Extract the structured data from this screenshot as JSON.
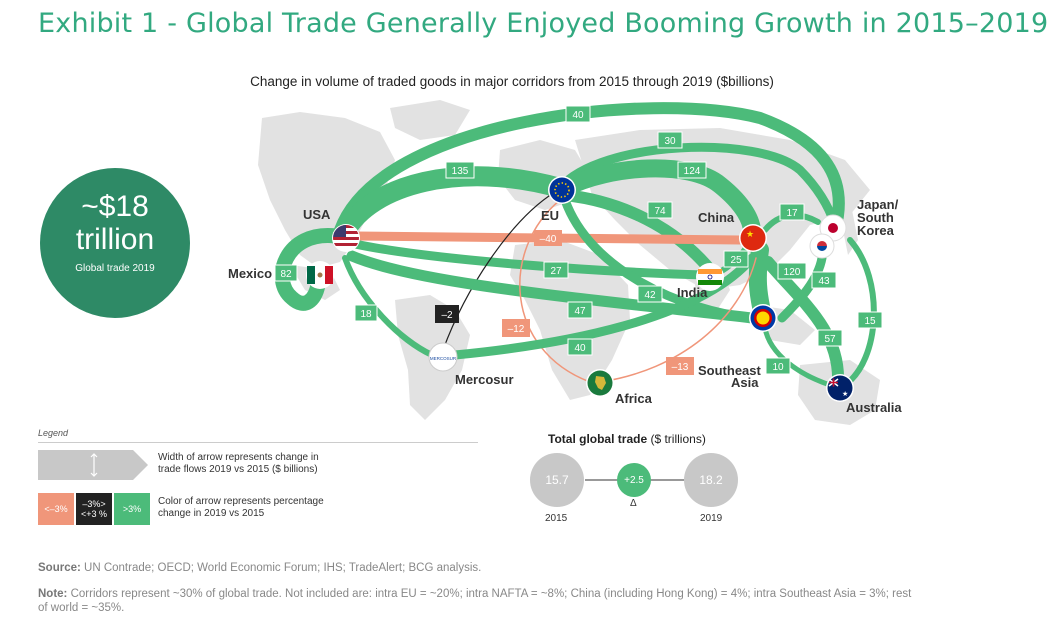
{
  "title": "Exhibit 1 - Global Trade Generally Enjoyed Booming Growth in 2015–2019",
  "subtitle": "Change in volume of traded goods in major corridors from 2015 through 2019 ($billions)",
  "global_trade": {
    "value": "~$18 trillion",
    "value_line1": "~$18",
    "value_line2": "trillion",
    "caption": "Global trade 2019"
  },
  "regions": {
    "usa": "USA",
    "mexico": "Mexico",
    "eu": "EU",
    "china": "China",
    "japan_line1": "Japan/",
    "japan_line2": "South",
    "japan_line3": "Korea",
    "india": "India",
    "mercosur": "Mercosur",
    "africa": "Africa",
    "sea_line1": "Southeast",
    "sea_line2": "Asia",
    "australia": "Australia"
  },
  "corridors": [
    {
      "value": "40",
      "color": "green"
    },
    {
      "value": "30",
      "color": "green"
    },
    {
      "value": "135",
      "color": "green"
    },
    {
      "value": "124",
      "color": "green"
    },
    {
      "value": "74",
      "color": "green"
    },
    {
      "value": "17",
      "color": "green"
    },
    {
      "value": "–40",
      "color": "salmon"
    },
    {
      "value": "25",
      "color": "green"
    },
    {
      "value": "82",
      "color": "green"
    },
    {
      "value": "27",
      "color": "green"
    },
    {
      "value": "120",
      "color": "green"
    },
    {
      "value": "43",
      "color": "green"
    },
    {
      "value": "42",
      "color": "green"
    },
    {
      "value": "–2",
      "color": "black"
    },
    {
      "value": "18",
      "color": "green"
    },
    {
      "value": "47",
      "color": "green"
    },
    {
      "value": "–12",
      "color": "salmon"
    },
    {
      "value": "15",
      "color": "green"
    },
    {
      "value": "57",
      "color": "green"
    },
    {
      "value": "40",
      "color": "green"
    },
    {
      "value": "–13",
      "color": "salmon"
    },
    {
      "value": "10",
      "color": "green"
    }
  ],
  "legend": {
    "title": "Legend",
    "width_text_line1": "Width of arrow represents change in",
    "width_text_line2": "trade flows 2019 vs 2015 ($ billions)",
    "color_text_line1": "Color of arrow represents percentage",
    "color_text_line2": "change in 2019 vs 2015",
    "swatch_low": "<–3%",
    "swatch_mid_line1": "–3%>",
    "swatch_mid_line2": "<+3 %",
    "swatch_high": ">3%"
  },
  "total": {
    "title": "Total global trade",
    "unit": "($ trillions)",
    "v2015": "15.7",
    "delta": "+2.5",
    "v2019": "18.2",
    "y2015": "2015",
    "delta_label": "Δ",
    "y2019": "2019"
  },
  "mercosur_logo_text": "MERCOSUR",
  "source_label": "Source:",
  "source_text": "UN Contrade; OECD; World Economic Forum; IHS; TradeAlert; BCG analysis.",
  "note_label": "Note:",
  "note_text": "Corridors represent ~30% of global trade. Not included are: intra EU = ~20%; intra NAFTA = ~8%; China (including Hong Kong) = 4%; intra Southeast Asia = 3%; rest of world = ~35%.",
  "colors": {
    "green": "#4cbb7a",
    "salmon": "#f0967a",
    "black": "#222222",
    "accent": "#32a980",
    "land": "#e2e2e2"
  }
}
